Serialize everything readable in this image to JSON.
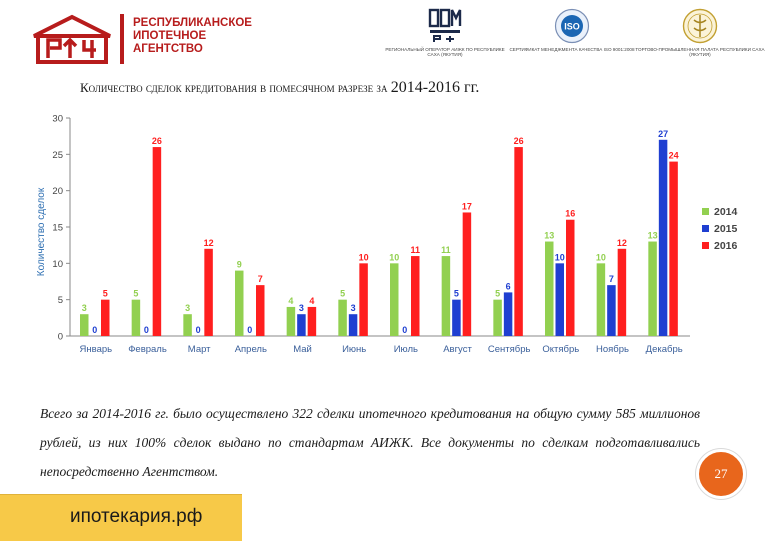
{
  "header": {
    "agency_lines": [
      "РЕСПУБЛИКАНСКОЕ",
      "ИПОТЕЧНОЕ",
      "АГЕНТСТВО"
    ],
    "partners": [
      {
        "caption": "РЕГИОНАЛЬНЫЙ ОПЕРАТОР АИЖК ПО РЕСПУБЛИКЕ САХА (ЯКУТИЯ)",
        "icon": "dom-rf-logo"
      },
      {
        "caption": "СЕРТИФИКАТ МЕНЕДЖМЕНТА КАЧЕСТВА ISO 9001:2008",
        "icon": "iso-seal",
        "seal_text": "ISO"
      },
      {
        "caption": "ТОРГОВО-ПРОМЫШЛЕННАЯ ПАЛАТА РЕСПУБЛИКИ САХА (ЯКУТИЯ)",
        "icon": "chamber-emblem"
      }
    ]
  },
  "title": {
    "main": "Количество сделок кредитования в помесячном разрезе за ",
    "years": "2014-2016 гг."
  },
  "chart_data": {
    "type": "bar",
    "categories": [
      "Январь",
      "Февраль",
      "Март",
      "Апрель",
      "Май",
      "Июнь",
      "Июль",
      "Август",
      "Сентябрь",
      "Октябрь",
      "Ноябрь",
      "Декабрь"
    ],
    "series": [
      {
        "name": "2014",
        "color": "#92d050",
        "values": [
          3,
          5,
          3,
          9,
          4,
          5,
          10,
          11,
          5,
          13,
          10,
          13
        ]
      },
      {
        "name": "2015",
        "color": "#1f3fd1",
        "values": [
          0,
          0,
          0,
          0,
          3,
          3,
          0,
          5,
          6,
          10,
          7,
          27
        ]
      },
      {
        "name": "2016",
        "color": "#ff1f1f",
        "values": [
          5,
          26,
          12,
          7,
          4,
          10,
          11,
          17,
          26,
          16,
          12,
          24
        ]
      }
    ],
    "ylabel": "Количество сделок",
    "ylim": [
      0,
      30
    ],
    "yticks": [
      0,
      5,
      10,
      15,
      20,
      25,
      30
    ],
    "grid": false,
    "legend": "right"
  },
  "body": {
    "text": "Всего за 2014-2016 гг. было осуществлено 322 сделки ипотечного кредитования на общую сумму 585 миллионов рублей, из них 100% сделок выдано по стандартам АИЖК. Все документы по сделкам подготавливались непосредственно Агентством."
  },
  "page_number": "27",
  "footer": {
    "site": "ипотекария.рф"
  },
  "colors": {
    "brand_red": "#b71c1c",
    "badge": "#e8661c",
    "footer_bg": "#f7c948"
  }
}
